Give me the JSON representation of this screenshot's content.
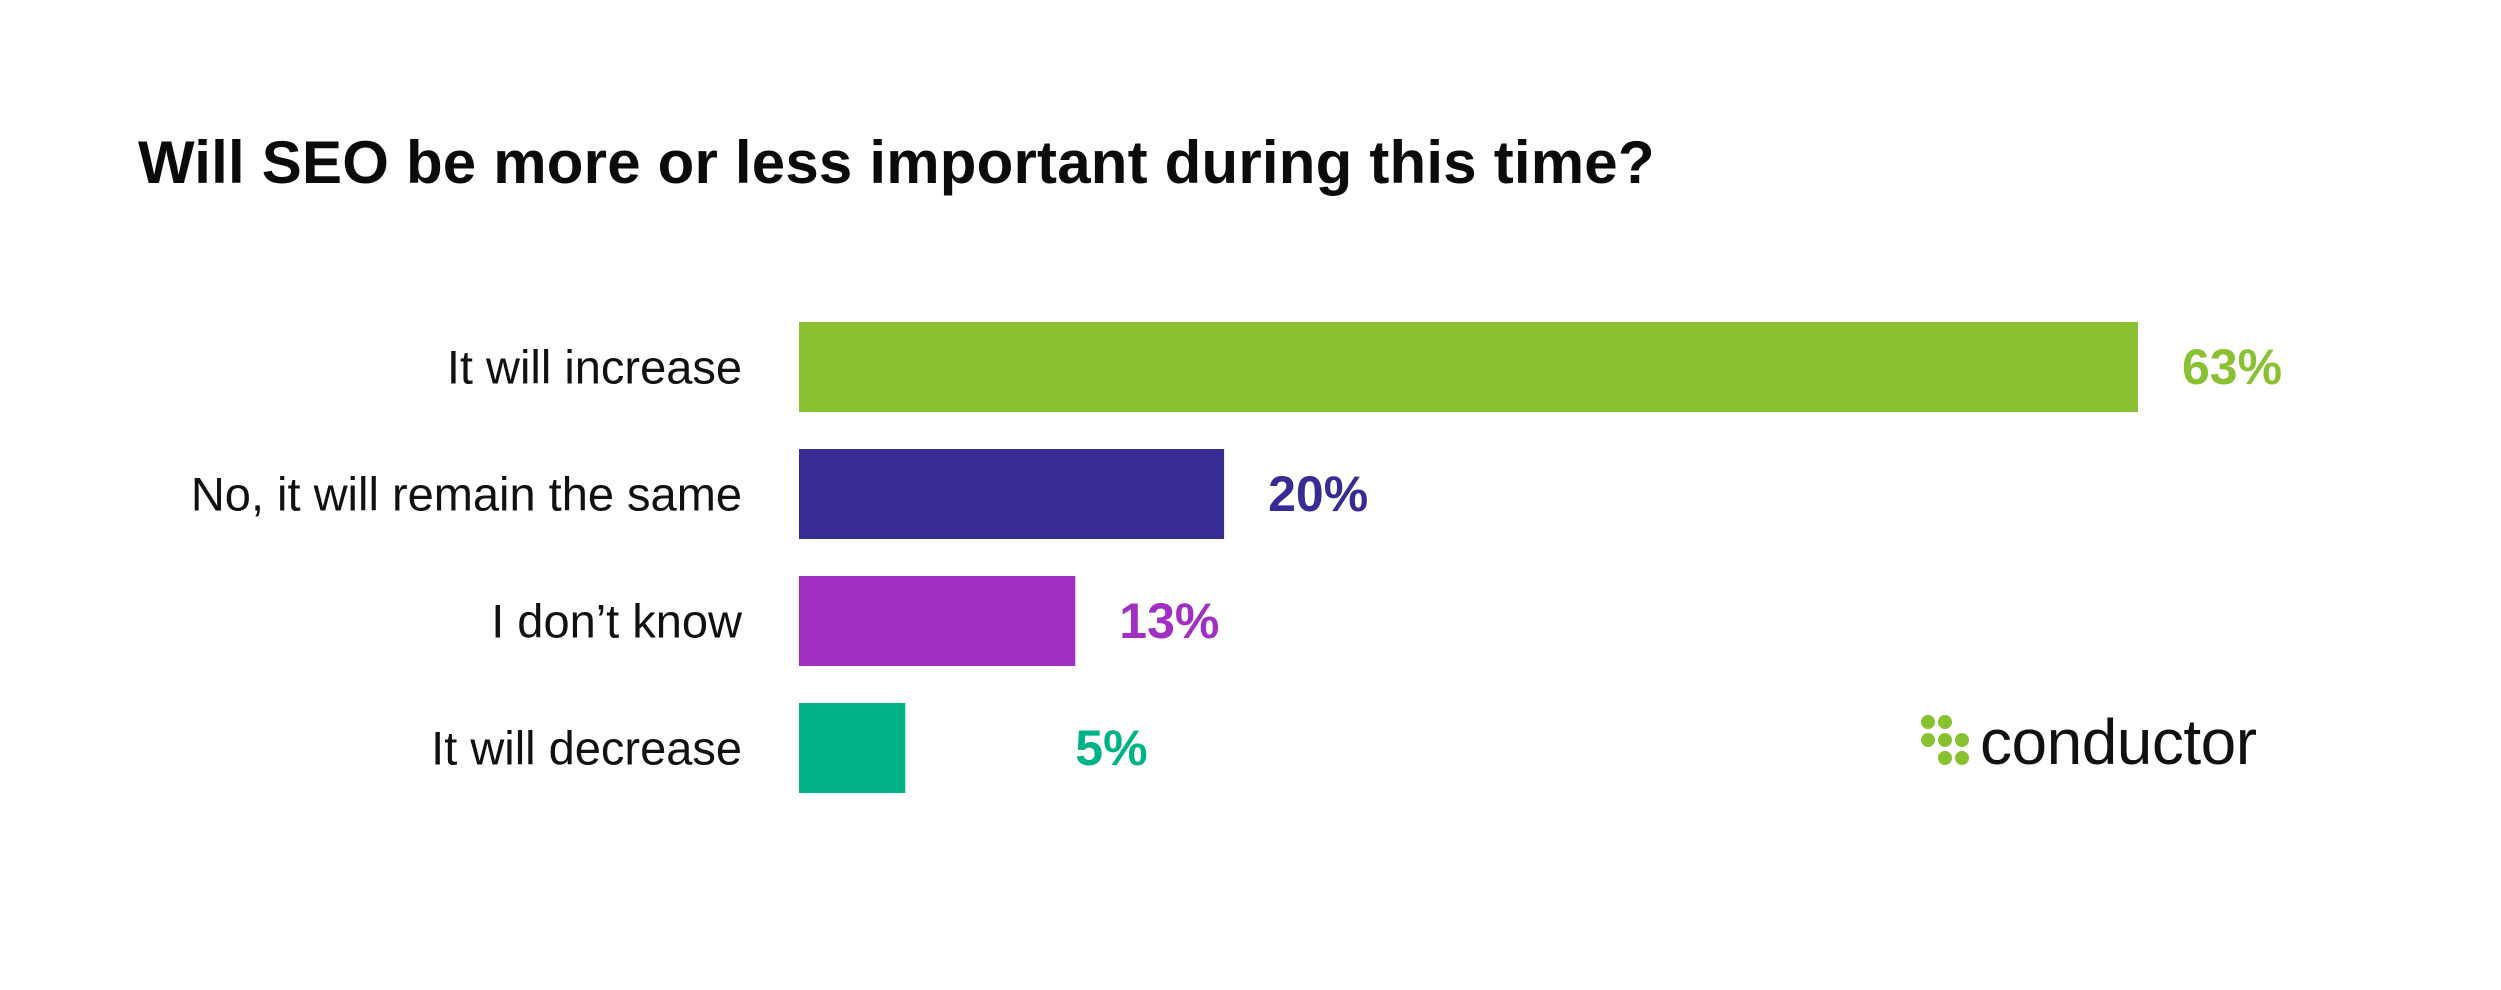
{
  "chart_data": {
    "type": "bar",
    "orientation": "horizontal",
    "title": "Will SEO be more or less important during this time?",
    "categories": [
      "It will increase",
      "No, it will remain the same",
      "I don’t know",
      "It will decrease"
    ],
    "values": [
      63,
      20,
      13,
      5
    ],
    "value_labels": [
      "63%",
      "20%",
      "13%",
      "5%"
    ],
    "colors": [
      "#8ac132",
      "#372b94",
      "#a22fc3",
      "#00b386"
    ],
    "xlim": [
      0,
      63
    ],
    "grid": false
  },
  "brand": {
    "name": "conductor",
    "mark_color": "#8ac132"
  }
}
